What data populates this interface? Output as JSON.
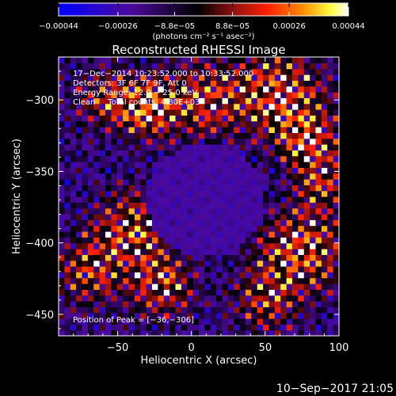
{
  "chart_data": {
    "type": "heatmap",
    "title": "Reconstructed RHESSI Image",
    "xlabel": "Heliocentric X (arcsec)",
    "ylabel": "Heliocentric Y (arcsec)",
    "xlim": [
      -90,
      100
    ],
    "ylim": [
      -465,
      -270
    ],
    "x_ticks": [
      -50,
      0,
      50,
      100
    ],
    "y_ticks": [
      -300,
      -350,
      -400,
      -450
    ],
    "x_tick_labels": [
      "−50",
      "0",
      "50",
      "100"
    ],
    "y_tick_labels": [
      "−300",
      "−350",
      "−400",
      "−450"
    ],
    "colorbar": {
      "min": -0.00044,
      "max": 0.00044,
      "tick_values": [
        -0.00044,
        -0.00026,
        -8.8e-05,
        8.8e-05,
        0.00026,
        0.00044
      ],
      "tick_labels": [
        "−0.00044",
        "−0.00026",
        "−8.8e−05",
        "8.8e−05",
        "0.00026",
        "0.00044"
      ],
      "unit_label": "(photons cm⁻² s⁻¹ asec⁻²)",
      "colors": [
        "#0000ff",
        "#4b0a9c",
        "#000000",
        "#8a1010",
        "#ff2000",
        "#ff8a00",
        "#ffff40",
        "#ffffff"
      ]
    },
    "annotations": [
      "17−Dec−2014 10:23:52.000 to 10:33:52.000",
      "Detectors: 3F 6F 7F 9F, Att 0",
      "Energy Range: 12.0 − 25.0 keV",
      "Clean     Total counts: 4.80E+03",
      "Position of Peak = [−36,−306]"
    ],
    "footer": "10−Sep−2017 21:05"
  }
}
